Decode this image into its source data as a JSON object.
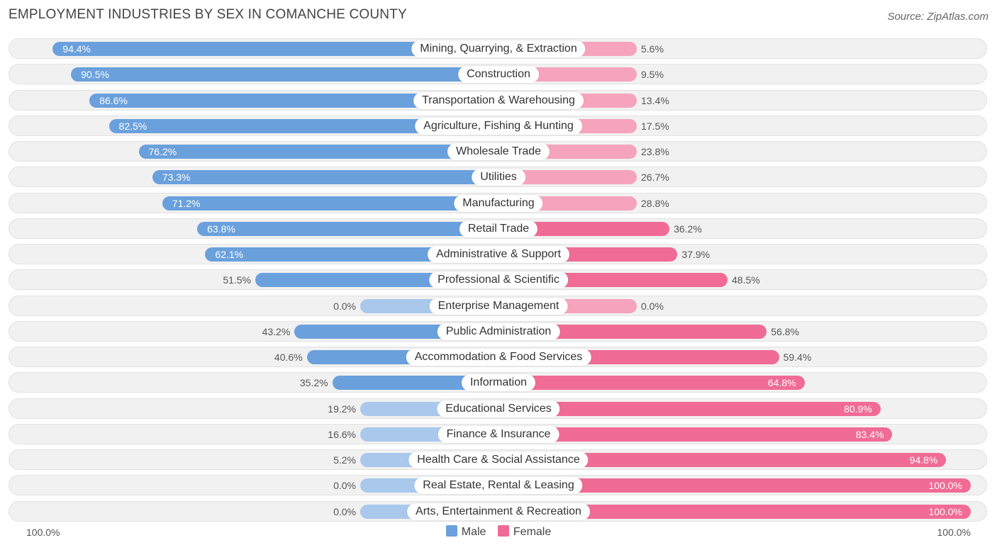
{
  "title": "EMPLOYMENT INDUSTRIES BY SEX IN COMANCHE COUNTY",
  "source": "Source: ZipAtlas.com",
  "axis": {
    "left_label": "100.0%",
    "right_label": "100.0%"
  },
  "legend": {
    "male_label": "Male",
    "female_label": "Female"
  },
  "colors": {
    "male_strong": "#6aa0dc",
    "male_light": "#a9c8ec",
    "female_strong": "#f06b96",
    "female_light": "#f6a3bd"
  },
  "chart_data": {
    "type": "bar",
    "orientation": "horizontal-diverging",
    "title": "EMPLOYMENT INDUSTRIES BY SEX IN COMANCHE COUNTY",
    "xlim": [
      -100,
      100
    ],
    "categories": [
      "Mining, Quarrying, & Extraction",
      "Construction",
      "Transportation & Warehousing",
      "Agriculture, Fishing & Hunting",
      "Wholesale Trade",
      "Utilities",
      "Manufacturing",
      "Retail Trade",
      "Administrative & Support",
      "Professional & Scientific",
      "Enterprise Management",
      "Public Administration",
      "Accommodation & Food Services",
      "Information",
      "Educational Services",
      "Finance & Insurance",
      "Health Care & Social Assistance",
      "Real Estate, Rental & Leasing",
      "Arts, Entertainment & Recreation"
    ],
    "series": [
      {
        "name": "Male",
        "values": [
          94.4,
          90.5,
          86.6,
          82.5,
          76.2,
          73.3,
          71.2,
          63.8,
          62.1,
          51.5,
          0.0,
          43.2,
          40.6,
          35.2,
          19.2,
          16.6,
          5.2,
          0.0,
          0.0
        ],
        "labels": [
          "94.4%",
          "90.5%",
          "86.6%",
          "82.5%",
          "76.2%",
          "73.3%",
          "71.2%",
          "63.8%",
          "62.1%",
          "51.5%",
          "0.0%",
          "43.2%",
          "40.6%",
          "35.2%",
          "19.2%",
          "16.6%",
          "5.2%",
          "0.0%",
          "0.0%"
        ]
      },
      {
        "name": "Female",
        "values": [
          5.6,
          9.5,
          13.4,
          17.5,
          23.8,
          26.7,
          28.8,
          36.2,
          37.9,
          48.5,
          0.0,
          56.8,
          59.4,
          64.8,
          80.9,
          83.4,
          94.8,
          100.0,
          100.0
        ],
        "labels": [
          "5.6%",
          "9.5%",
          "13.4%",
          "17.5%",
          "23.8%",
          "26.7%",
          "28.8%",
          "36.2%",
          "37.9%",
          "48.5%",
          "0.0%",
          "56.8%",
          "59.4%",
          "64.8%",
          "80.9%",
          "83.4%",
          "94.8%",
          "100.0%",
          "100.0%"
        ]
      }
    ]
  }
}
